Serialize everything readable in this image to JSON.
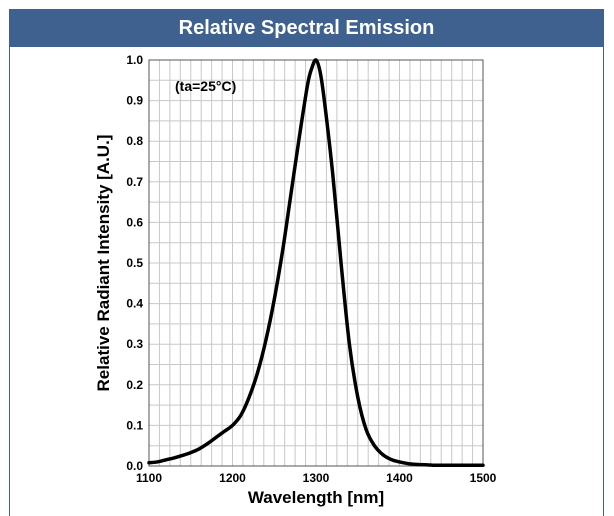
{
  "header": {
    "title": "Relative Spectral Emission"
  },
  "chart_data": {
    "type": "line",
    "xlabel": "Wavelength [nm]",
    "ylabel": "Relative Radiant Intensity [A.U.]",
    "annotation": "(ta=25°C)",
    "xlim": [
      1100,
      1500
    ],
    "ylim": [
      0,
      1.0
    ],
    "xticks": [
      "1100",
      "1200",
      "1300",
      "1400",
      "1500"
    ],
    "yticks": [
      "0.0",
      "0.1",
      "0.2",
      "0.3",
      "0.4",
      "0.5",
      "0.6",
      "0.7",
      "0.8",
      "0.9",
      "1.0"
    ],
    "grid": true,
    "series": [
      {
        "color": "#000000",
        "x": [
          1100,
          1110,
          1120,
          1130,
          1140,
          1150,
          1160,
          1170,
          1180,
          1190,
          1200,
          1210,
          1220,
          1230,
          1240,
          1250,
          1260,
          1270,
          1280,
          1290,
          1295,
          1300,
          1305,
          1310,
          1320,
          1330,
          1340,
          1350,
          1360,
          1370,
          1380,
          1390,
          1400,
          1410,
          1420,
          1430,
          1440,
          1450,
          1470,
          1500
        ],
        "y": [
          0.008,
          0.01,
          0.015,
          0.02,
          0.026,
          0.033,
          0.042,
          0.055,
          0.07,
          0.085,
          0.1,
          0.125,
          0.17,
          0.23,
          0.31,
          0.41,
          0.53,
          0.67,
          0.81,
          0.94,
          0.98,
          1.0,
          0.97,
          0.9,
          0.72,
          0.5,
          0.3,
          0.17,
          0.09,
          0.05,
          0.028,
          0.016,
          0.01,
          0.006,
          0.004,
          0.003,
          0.002,
          0.002,
          0.002,
          0.002
        ]
      }
    ]
  }
}
